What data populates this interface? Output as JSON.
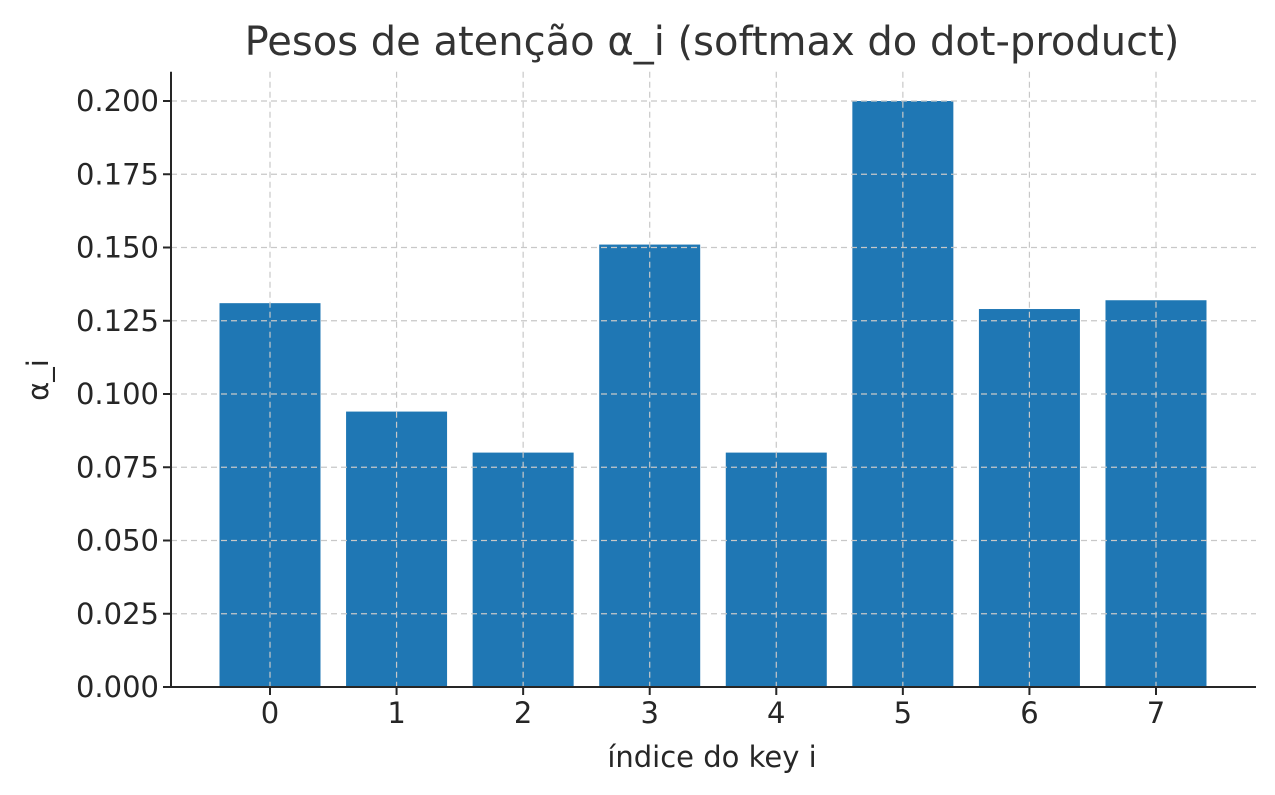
{
  "chart_data": {
    "type": "bar",
    "title": "Pesos de atenção α_i (softmax do dot-product)",
    "xlabel": "índice do key i",
    "ylabel": "α_i",
    "categories": [
      "0",
      "1",
      "2",
      "3",
      "4",
      "5",
      "6",
      "7"
    ],
    "values": [
      0.131,
      0.094,
      0.08,
      0.151,
      0.08,
      0.2,
      0.129,
      0.132
    ],
    "ylim": [
      0,
      0.21
    ],
    "yticks": [
      0.0,
      0.025,
      0.05,
      0.075,
      0.1,
      0.125,
      0.15,
      0.175,
      0.2
    ],
    "ytick_labels": [
      "0.000",
      "0.025",
      "0.050",
      "0.075",
      "0.100",
      "0.125",
      "0.150",
      "0.175",
      "0.200"
    ],
    "grid": true,
    "bar_color": "#1f77b4"
  }
}
